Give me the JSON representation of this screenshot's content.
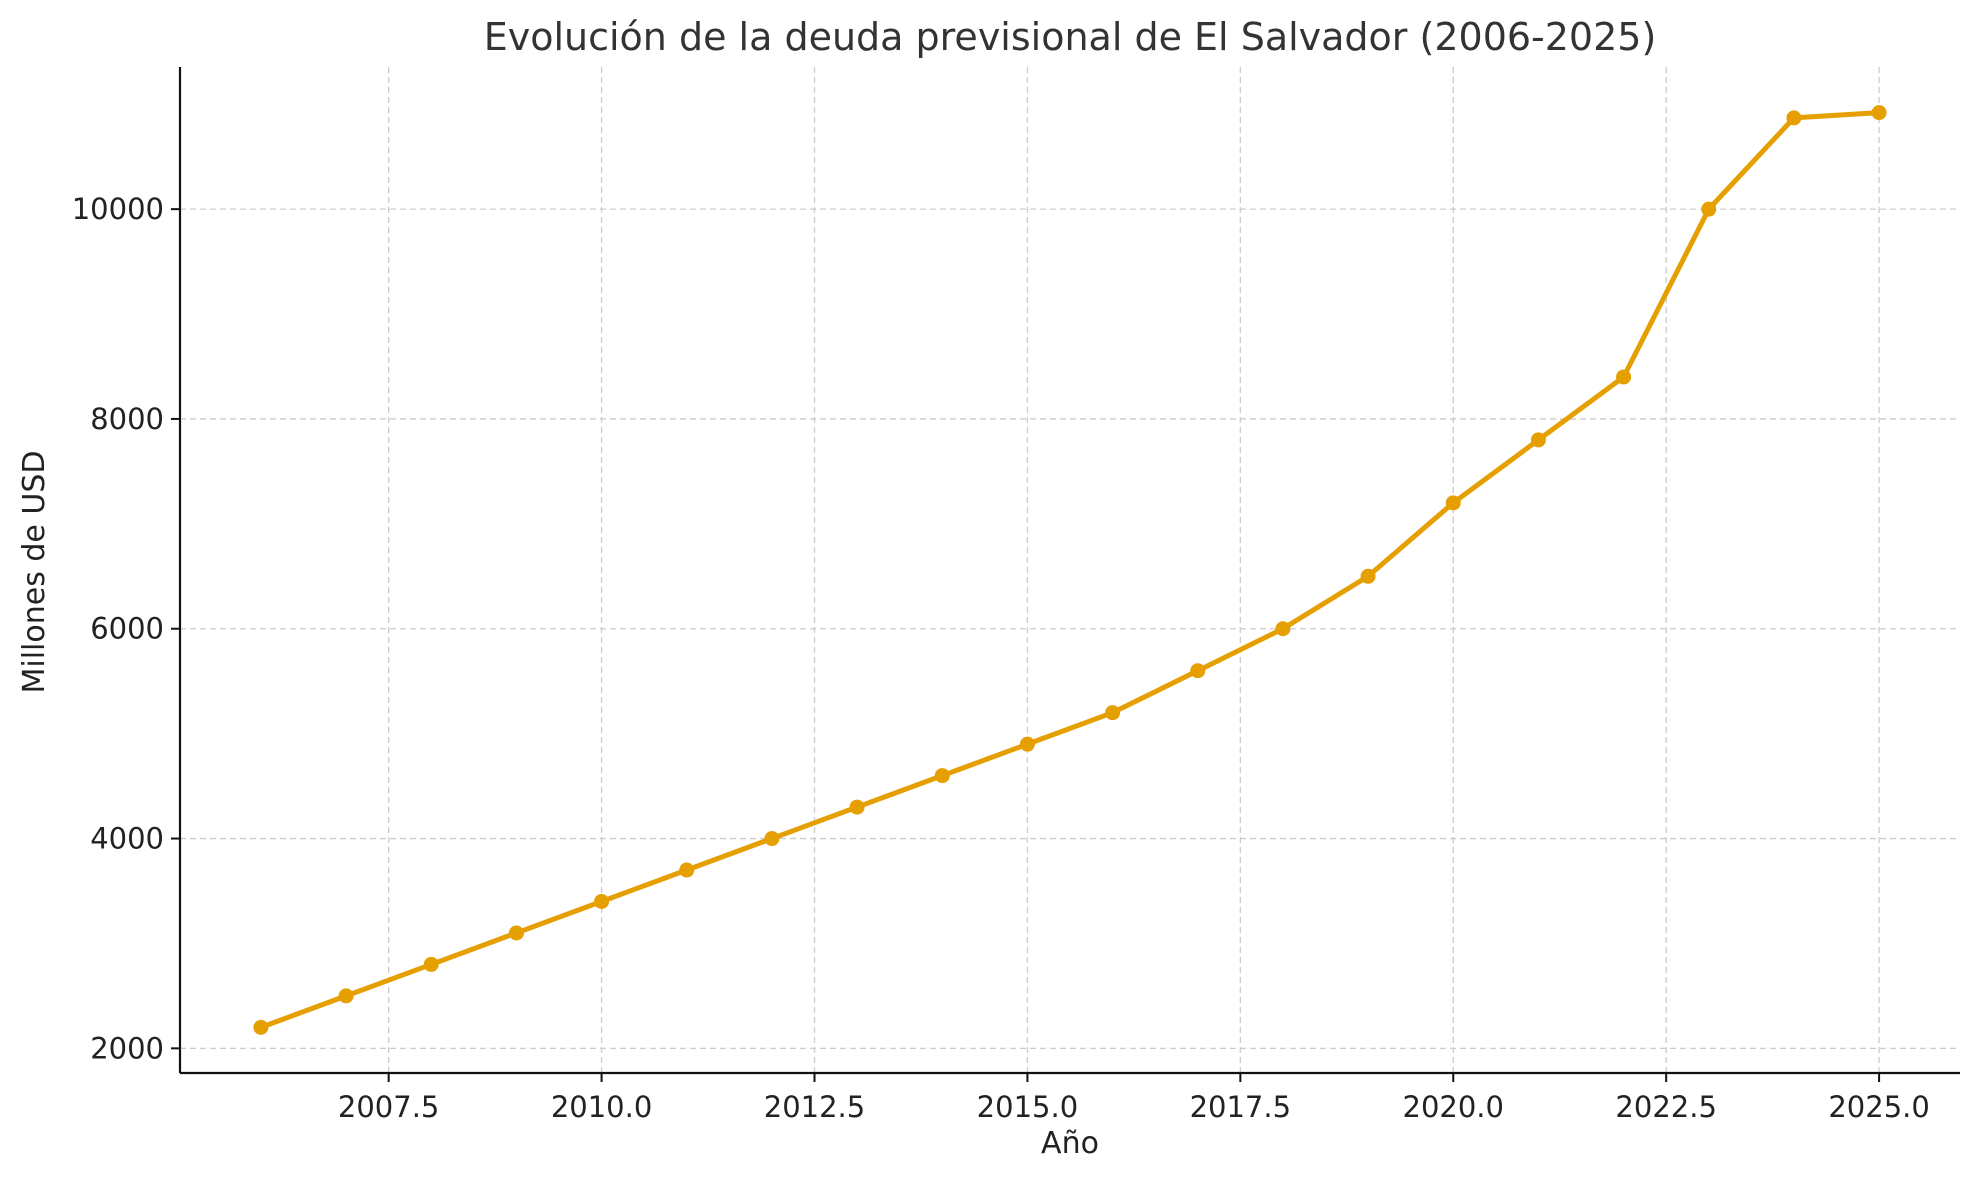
{
  "chart_data": {
    "type": "line",
    "title": "Evolución de la deuda previsional de El Salvador (2006-2025)",
    "xlabel": "Año",
    "ylabel": "Millones de USD",
    "x": [
      2006,
      2007,
      2008,
      2009,
      2010,
      2011,
      2012,
      2013,
      2014,
      2015,
      2016,
      2017,
      2018,
      2019,
      2020,
      2021,
      2022,
      2023,
      2024,
      2025
    ],
    "series": [
      {
        "name": "",
        "color": "#E69F00",
        "values": [
          2200,
          2500,
          2800,
          3100,
          3400,
          3700,
          4000,
          4300,
          4600,
          4900,
          5200,
          5600,
          6000,
          6500,
          7200,
          7800,
          8400,
          10000,
          10870,
          10920
        ]
      }
    ],
    "xlim": [
      2005.05,
      2025.95
    ],
    "ylim": [
      1765,
      11355
    ],
    "xticks": [
      2007.5,
      2010.0,
      2012.5,
      2015.0,
      2017.5,
      2020.0,
      2022.5,
      2025.0
    ],
    "xtick_labels": [
      "2007.5",
      "2010.0",
      "2012.5",
      "2015.0",
      "2017.5",
      "2020.0",
      "2022.5",
      "2025.0"
    ],
    "yticks": [
      2000,
      4000,
      6000,
      8000,
      10000
    ],
    "ytick_labels": [
      "2000",
      "4000",
      "6000",
      "8000",
      "10000"
    ],
    "grid": true,
    "legend": "none"
  }
}
